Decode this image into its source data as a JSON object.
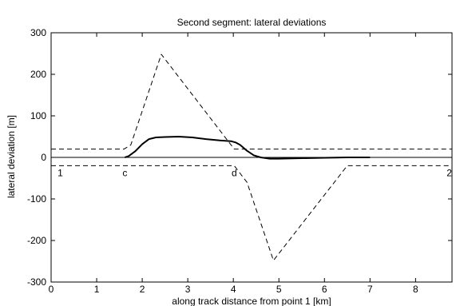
{
  "chart_data": {
    "type": "line",
    "title": "Second segment: lateral deviations",
    "xlabel": "along track distance from point 1 [km]",
    "ylabel": "lateral deviation [m]",
    "xlim": [
      0,
      8.8
    ],
    "ylim": [
      -300,
      300
    ],
    "xticks": [
      0,
      1,
      2,
      3,
      4,
      5,
      6,
      7,
      8
    ],
    "yticks": [
      -300,
      -200,
      -100,
      0,
      100,
      200,
      300
    ],
    "grid": false,
    "zero_line": true,
    "series": [
      {
        "style": "dashed",
        "points": [
          [
            0,
            20
          ],
          [
            1.6,
            20
          ],
          [
            1.75,
            30
          ],
          [
            2.42,
            248
          ],
          [
            4.02,
            20
          ],
          [
            8.8,
            20
          ]
        ]
      },
      {
        "style": "dashed",
        "points": [
          [
            0,
            -20
          ],
          [
            4.02,
            -20
          ],
          [
            4.3,
            -60
          ],
          [
            4.88,
            -248
          ],
          [
            6.5,
            -20
          ],
          [
            8.8,
            -20
          ]
        ]
      },
      {
        "style": "solid",
        "points": [
          [
            1.62,
            0
          ],
          [
            1.7,
            3
          ],
          [
            1.85,
            15
          ],
          [
            2.0,
            32
          ],
          [
            2.15,
            44
          ],
          [
            2.3,
            48
          ],
          [
            2.5,
            49
          ],
          [
            2.8,
            50
          ],
          [
            3.1,
            48
          ],
          [
            3.4,
            44
          ],
          [
            3.7,
            41
          ],
          [
            3.95,
            39
          ],
          [
            4.05,
            36
          ],
          [
            4.15,
            30
          ],
          [
            4.3,
            16
          ],
          [
            4.45,
            5
          ],
          [
            4.6,
            0
          ],
          [
            4.8,
            -3
          ],
          [
            5.0,
            -3
          ],
          [
            5.5,
            -2
          ],
          [
            6.0,
            -1
          ],
          [
            6.5,
            0
          ],
          [
            7.0,
            0
          ]
        ]
      }
    ],
    "annotations": [
      {
        "text": "1",
        "x": 0.2,
        "y": -45
      },
      {
        "text": "c",
        "x": 1.62,
        "y": -45
      },
      {
        "text": "d",
        "x": 4.02,
        "y": -45
      },
      {
        "text": "2",
        "x": 8.74,
        "y": -45
      }
    ]
  }
}
